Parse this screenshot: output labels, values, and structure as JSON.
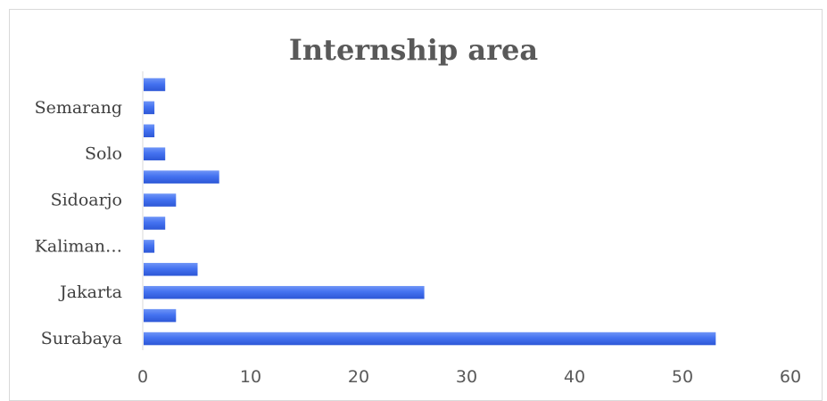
{
  "chart_data": {
    "type": "bar",
    "orientation": "horizontal",
    "title": "Internship area",
    "xlabel": "",
    "ylabel": "",
    "xlim": [
      0,
      60
    ],
    "x_ticks": [
      0,
      10,
      20,
      30,
      40,
      50,
      60
    ],
    "categories": [
      "Surabaya",
      "",
      "Jakarta",
      "",
      "Kaliman…",
      "",
      "Sidoarjo",
      "",
      "Solo",
      "",
      "Semarang",
      ""
    ],
    "values": [
      53,
      3,
      26,
      5,
      1,
      2,
      3,
      7,
      2,
      1,
      1,
      2
    ],
    "grid": false,
    "legend": "none",
    "bar_color": "#4472f0"
  }
}
